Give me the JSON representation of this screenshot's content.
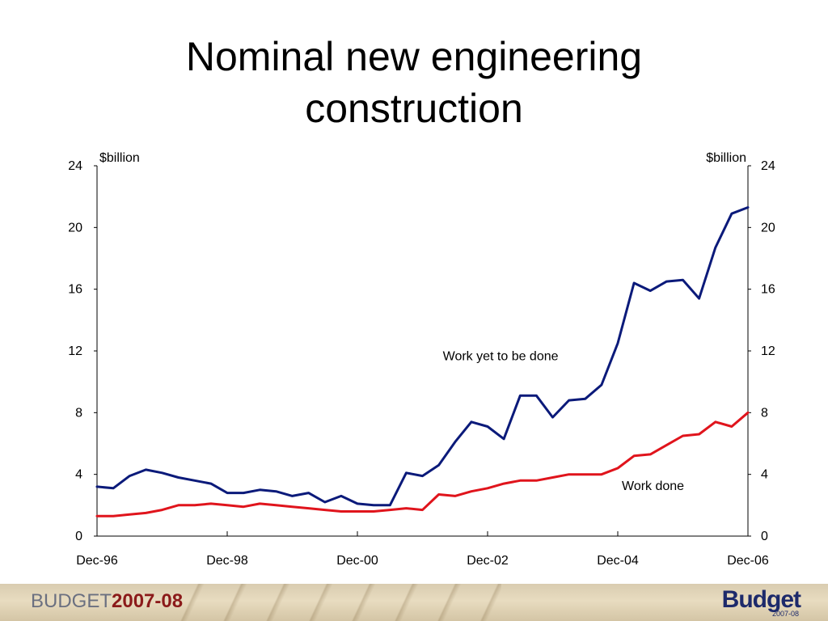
{
  "title": {
    "line1": "Nominal new engineering",
    "line2": "construction"
  },
  "chart_data": {
    "type": "line",
    "ylabel_left": "$billion",
    "ylabel_right": "$billion",
    "ylim": [
      0,
      24
    ],
    "y_ticks": [
      "0",
      "4",
      "8",
      "12",
      "16",
      "20",
      "24"
    ],
    "x_tick_labels": [
      "Dec-96",
      "Dec-98",
      "Dec-00",
      "Dec-02",
      "Dec-04",
      "Dec-06"
    ],
    "x": [
      "Dec-96",
      "Mar-97",
      "Jun-97",
      "Sep-97",
      "Dec-97",
      "Mar-98",
      "Jun-98",
      "Sep-98",
      "Dec-98",
      "Mar-99",
      "Jun-99",
      "Sep-99",
      "Dec-99",
      "Mar-00",
      "Jun-00",
      "Sep-00",
      "Dec-00",
      "Mar-01",
      "Jun-01",
      "Sep-01",
      "Dec-01",
      "Mar-02",
      "Jun-02",
      "Sep-02",
      "Dec-02",
      "Mar-03",
      "Jun-03",
      "Sep-03",
      "Dec-03",
      "Mar-04",
      "Jun-04",
      "Sep-04",
      "Dec-04",
      "Mar-05",
      "Jun-05",
      "Sep-05",
      "Dec-05",
      "Mar-06",
      "Jun-06",
      "Sep-06",
      "Dec-06"
    ],
    "series": [
      {
        "name": "Work yet to be done",
        "color": "#0b1a7a",
        "values": [
          3.2,
          3.1,
          3.9,
          4.3,
          4.1,
          3.8,
          3.6,
          3.4,
          2.8,
          2.8,
          3.0,
          2.9,
          2.6,
          2.8,
          2.2,
          2.6,
          2.1,
          2.0,
          2.0,
          4.1,
          3.9,
          4.6,
          6.1,
          7.4,
          7.1,
          6.3,
          9.1,
          9.1,
          7.7,
          8.8,
          8.9,
          9.8,
          12.5,
          16.4,
          15.9,
          16.5,
          16.6,
          15.4,
          18.7,
          20.9,
          21.3
        ]
      },
      {
        "name": "Work done",
        "color": "#e0141c",
        "values": [
          1.3,
          1.3,
          1.4,
          1.5,
          1.7,
          2.0,
          2.0,
          2.1,
          2.0,
          1.9,
          2.1,
          2.0,
          1.9,
          1.8,
          1.7,
          1.6,
          1.6,
          1.6,
          1.7,
          1.8,
          1.7,
          2.7,
          2.6,
          2.9,
          3.1,
          3.4,
          3.6,
          3.6,
          3.8,
          4.0,
          4.0,
          4.0,
          4.4,
          5.2,
          5.3,
          5.9,
          6.5,
          6.6,
          7.4,
          7.1,
          8.0
        ]
      }
    ],
    "annotations": [
      {
        "text": "Work yet to be done",
        "x": "Mar-02",
        "y": 11.7
      },
      {
        "text": "Work done",
        "x": "Dec-04",
        "y": 3.3
      }
    ],
    "grid": false,
    "legend": "none"
  },
  "footer": {
    "left_word": "BUDGET",
    "left_year": "2007-08",
    "right_word": "Budget",
    "right_year": "2007-08"
  }
}
